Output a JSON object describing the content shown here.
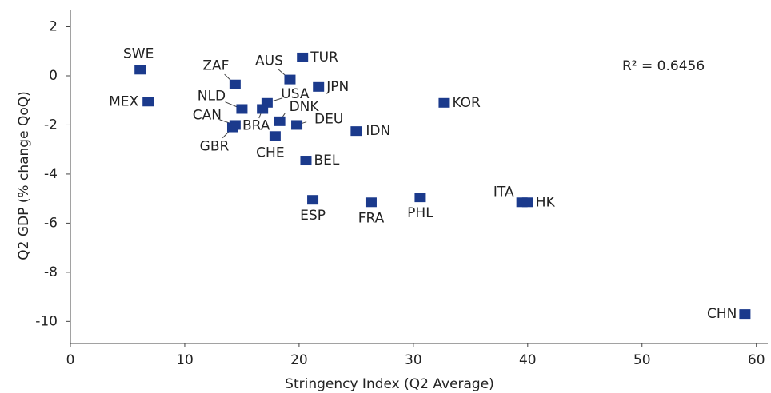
{
  "chart_data": {
    "type": "scatter",
    "xlabel": "Stringency Index (Q2 Average)",
    "ylabel": "Q2 GDP (% change QoQ)",
    "annotation": "R² = 0.6456",
    "labels": [
      "SWE",
      "MEX",
      "ZAF",
      "NLD",
      "CAN",
      "GBR",
      "BRA",
      "USA",
      "AUS",
      "TUR",
      "JPN",
      "DNK",
      "DEU",
      "CHE",
      "BEL",
      "IDN",
      "KOR",
      "ESP",
      "FRA",
      "PHL",
      "ITA",
      "HK",
      "CHN"
    ],
    "x": [
      6.1,
      6.8,
      14.4,
      15.0,
      14.4,
      14.2,
      16.8,
      17.2,
      19.2,
      20.3,
      21.7,
      18.3,
      19.8,
      17.9,
      20.6,
      25.0,
      32.7,
      21.2,
      26.3,
      30.6,
      39.5,
      40.0,
      59.0
    ],
    "values": [
      0.25,
      -1.05,
      -0.35,
      -1.35,
      -2.0,
      -2.1,
      -1.35,
      -1.1,
      -0.15,
      0.75,
      -0.45,
      -1.85,
      -2.0,
      -2.45,
      -3.45,
      -2.25,
      -1.1,
      -5.05,
      -5.15,
      -4.95,
      -5.15,
      -5.15,
      -9.7
    ],
    "color": "#1b3a8c",
    "xlim": [
      0,
      61
    ],
    "xticks": [
      0,
      10,
      20,
      30,
      40,
      50,
      60
    ],
    "ylim": [
      -10.9,
      2.7
    ],
    "yticks": [
      2,
      0,
      -2,
      -4,
      -6,
      -8,
      -10
    ],
    "grid": false
  }
}
